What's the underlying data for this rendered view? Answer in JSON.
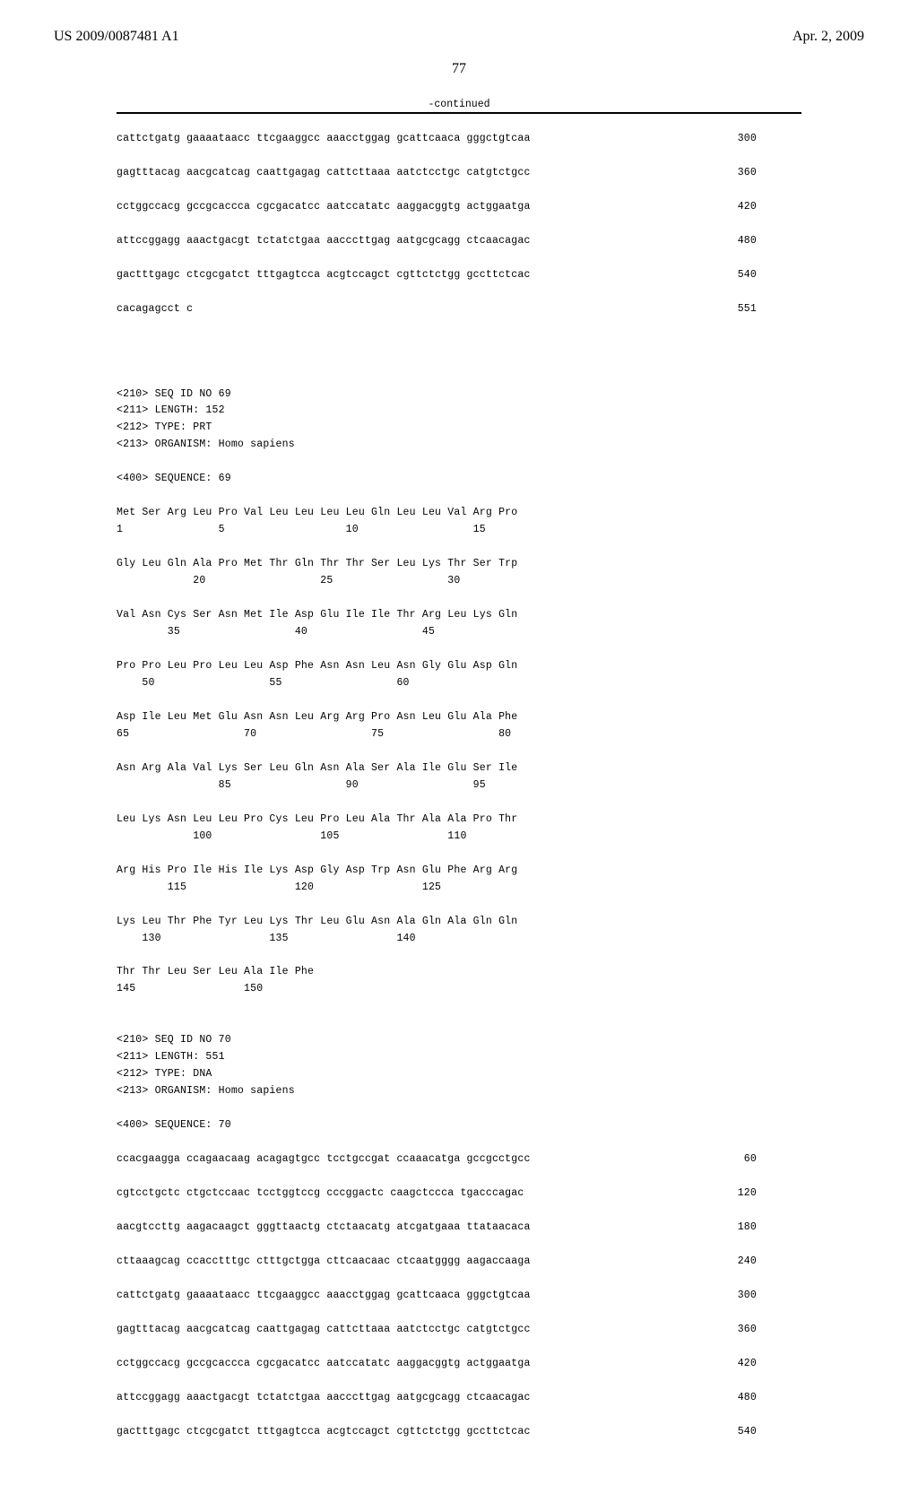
{
  "header": {
    "pub_no": "US 2009/0087481 A1",
    "pub_date": "Apr. 2, 2009"
  },
  "page_number": "77",
  "continued": "-continued",
  "dna68": {
    "lines": [
      {
        "seq": "cattctgatg gaaaataacc ttcgaaggcc aaacctggag gcattcaaca gggctgtcaa",
        "n": "300"
      },
      {
        "seq": "gagtttacag aacgcatcag caattgagag cattcttaaa aatctcctgc catgtctgcc",
        "n": "360"
      },
      {
        "seq": "cctggccacg gccgcaccca cgcgacatcc aatccatatc aaggacggtg actggaatga",
        "n": "420"
      },
      {
        "seq": "attccggagg aaactgacgt tctatctgaa aacccttgag aatgcgcagg ctcaacagac",
        "n": "480"
      },
      {
        "seq": "gactttgagc ctcgcgatct tttgagtcca acgtccagct cgttctctgg gccttctcac",
        "n": "540"
      },
      {
        "seq": "cacagagcct c",
        "n": "551"
      }
    ]
  },
  "seqheader69": {
    "l1": "<210> SEQ ID NO 69",
    "l2": "<211> LENGTH: 152",
    "l3": "<212> TYPE: PRT",
    "l4": "<213> ORGANISM: Homo sapiens",
    "l5": "<400> SEQUENCE: 69"
  },
  "protein69": {
    "r1a": "Met Ser Arg Leu Pro Val Leu Leu Leu Leu Gln Leu Leu Val Arg Pro",
    "r1b": "1               5                   10                  15",
    "r2a": "Gly Leu Gln Ala Pro Met Thr Gln Thr Thr Ser Leu Lys Thr Ser Trp",
    "r2b": "            20                  25                  30",
    "r3a": "Val Asn Cys Ser Asn Met Ile Asp Glu Ile Ile Thr Arg Leu Lys Gln",
    "r3b": "        35                  40                  45",
    "r4a": "Pro Pro Leu Pro Leu Leu Asp Phe Asn Asn Leu Asn Gly Glu Asp Gln",
    "r4b": "    50                  55                  60",
    "r5a": "Asp Ile Leu Met Glu Asn Asn Leu Arg Arg Pro Asn Leu Glu Ala Phe",
    "r5b": "65                  70                  75                  80",
    "r6a": "Asn Arg Ala Val Lys Ser Leu Gln Asn Ala Ser Ala Ile Glu Ser Ile",
    "r6b": "                85                  90                  95",
    "r7a": "Leu Lys Asn Leu Leu Pro Cys Leu Pro Leu Ala Thr Ala Ala Pro Thr",
    "r7b": "            100                 105                 110",
    "r8a": "Arg His Pro Ile His Ile Lys Asp Gly Asp Trp Asn Glu Phe Arg Arg",
    "r8b": "        115                 120                 125",
    "r9a": "Lys Leu Thr Phe Tyr Leu Lys Thr Leu Glu Asn Ala Gln Ala Gln Gln",
    "r9b": "    130                 135                 140",
    "r10a": "Thr Thr Leu Ser Leu Ala Ile Phe",
    "r10b": "145                 150"
  },
  "seqheader70": {
    "l1": "<210> SEQ ID NO 70",
    "l2": "<211> LENGTH: 551",
    "l3": "<212> TYPE: DNA",
    "l4": "<213> ORGANISM: Homo sapiens",
    "l5": "<400> SEQUENCE: 70"
  },
  "dna70": {
    "lines": [
      {
        "seq": "ccacgaagga ccagaacaag acagagtgcc tcctgccgat ccaaacatga gccgcctgcc",
        "n": "60"
      },
      {
        "seq": "cgtcctgctc ctgctccaac tcctggtccg cccggactc caagctccca tgacccagac",
        "n": "120"
      },
      {
        "seq": "aacgtccttg aagacaagct gggttaactg ctctaacatg atcgatgaaa ttataacaca",
        "n": "180"
      },
      {
        "seq": "cttaaagcag ccacctttgc ctttgctgga cttcaacaac ctcaatgggg aagaccaaga",
        "n": "240"
      },
      {
        "seq": "cattctgatg gaaaataacc ttcgaaggcc aaacctggag gcattcaaca gggctgtcaa",
        "n": "300"
      },
      {
        "seq": "gagtttacag aacgcatcag caattgagag cattcttaaa aatctcctgc catgtctgcc",
        "n": "360"
      },
      {
        "seq": "cctggccacg gccgcaccca cgcgacatcc aatccatatc aaggacggtg actggaatga",
        "n": "420"
      },
      {
        "seq": "attccggagg aaactgacgt tctatctgaa aacccttgag aatgcgcagg ctcaacagac",
        "n": "480"
      },
      {
        "seq": "gactttgagc ctcgcgatct tttgagtcca acgtccagct cgttctctgg gccttctcac",
        "n": "540"
      }
    ]
  }
}
